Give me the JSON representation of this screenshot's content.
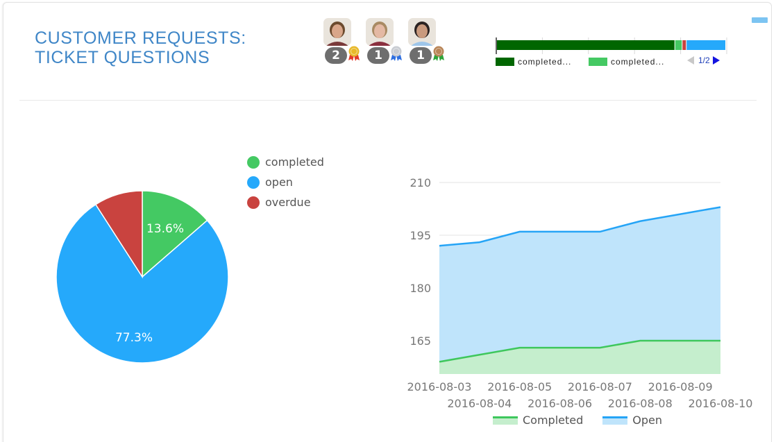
{
  "header": {
    "title_line1": "CUSTOMER REQUESTS:",
    "title_line2": "TICKET QUESTIONS",
    "title_color": "#3f86c7"
  },
  "leaderboard": [
    {
      "rank": "gold",
      "count": "2",
      "medal_color": "#e8b92a",
      "ribbon_color": "#e23b2b",
      "avatar_skin": "#d9a68a",
      "avatar_hair": "#6b4a2e",
      "avatar_shirt": "#7a3a3a"
    },
    {
      "rank": "silver",
      "count": "1",
      "medal_color": "#c9ccd2",
      "ribbon_color": "#2f6fe0",
      "avatar_skin": "#e4b9a4",
      "avatar_hair": "#a88a63",
      "avatar_shirt": "#8a2f3e"
    },
    {
      "rank": "bronze",
      "count": "1",
      "medal_color": "#b98557",
      "ribbon_color": "#2fa43a",
      "avatar_skin": "#c99a7e",
      "avatar_hair": "#2b2322",
      "avatar_shirt": "#9ec6ea"
    }
  ],
  "stacked_bar": {
    "legend": [
      {
        "label": "completed...",
        "color": "#006600"
      },
      {
        "label": "completed...",
        "color": "#45c963"
      }
    ],
    "pager": "1/2",
    "segments": [
      {
        "name": "completed (dark)",
        "fraction": 0.778,
        "color": "#006600"
      },
      {
        "name": "completed (light)",
        "fraction": 0.032,
        "color": "#45c963"
      },
      {
        "name": "overdue",
        "fraction": 0.018,
        "color": "#c9433f"
      },
      {
        "name": "open",
        "fraction": 0.172,
        "color": "#25a9fb"
      }
    ]
  },
  "pie": {
    "legend": [
      {
        "label": "completed",
        "color": "#44c963"
      },
      {
        "label": "open",
        "color": "#25a9fb"
      },
      {
        "label": "overdue",
        "color": "#c9433f"
      }
    ],
    "labels": {
      "completed": "13.6%",
      "open": "77.3%"
    }
  },
  "line": {
    "legend": [
      {
        "label": "Completed",
        "stroke": "#3ec75c",
        "fill": "#c5eecd"
      },
      {
        "label": "Open",
        "stroke": "#25a4f6",
        "fill": "#bfe4fb"
      }
    ]
  },
  "chart_data": [
    {
      "type": "pie",
      "title": "",
      "categories": [
        "completed",
        "open",
        "overdue"
      ],
      "values": [
        13.6,
        77.3,
        9.1
      ],
      "colors": [
        "#44c963",
        "#25a9fb",
        "#c9433f"
      ],
      "data_labels": [
        "13.6%",
        "77.3%",
        ""
      ],
      "legend_position": "right"
    },
    {
      "type": "area",
      "title": "",
      "xlabel": "",
      "ylabel": "",
      "x": [
        "2016-08-03",
        "2016-08-04",
        "2016-08-05",
        "2016-08-06",
        "2016-08-07",
        "2016-08-08",
        "2016-08-09",
        "2016-08-10"
      ],
      "series": [
        {
          "name": "Completed",
          "values": [
            159,
            161,
            163,
            163,
            163,
            165,
            165,
            165
          ],
          "color": "#3ec75c"
        },
        {
          "name": "Open",
          "values": [
            192,
            193,
            196,
            196,
            196,
            199,
            201,
            203
          ],
          "color": "#25a4f6"
        }
      ],
      "yticks": [
        165,
        180,
        195,
        210
      ],
      "ylim": [
        156,
        210
      ],
      "grid": true,
      "legend_position": "bottom"
    },
    {
      "type": "bar",
      "orientation": "horizontal-stacked",
      "title": "",
      "categories": [
        "completed (dark)",
        "completed (light)",
        "overdue",
        "open"
      ],
      "values": [
        77.8,
        3.2,
        1.8,
        17.2
      ],
      "legend_entries": [
        "completed...",
        "completed..."
      ],
      "legend_page": "1/2",
      "legend_position": "bottom"
    }
  ]
}
